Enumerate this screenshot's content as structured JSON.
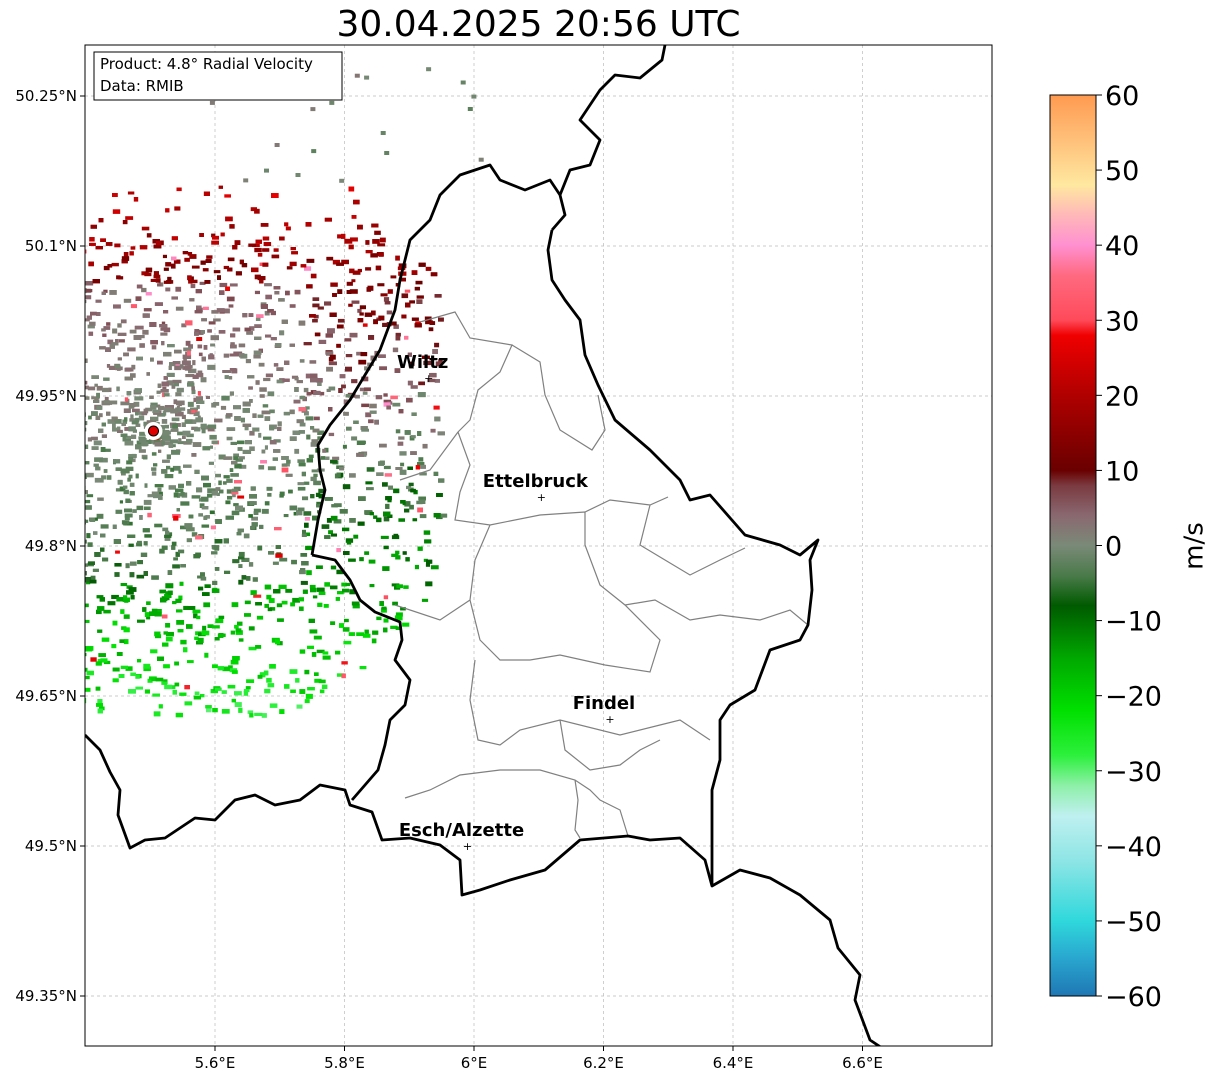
{
  "title": "30.04.2025 20:56 UTC",
  "info_box": {
    "product": "Product: 4.8° Radial Velocity",
    "data": "Data: RMIB"
  },
  "map": {
    "lon_range": [
      5.4,
      6.8
    ],
    "lat_range": [
      49.3,
      50.3
    ],
    "gridlines": true,
    "lon_ticks": [
      {
        "value": 5.6,
        "label": "5.6°E"
      },
      {
        "value": 5.8,
        "label": "5.8°E"
      },
      {
        "value": 6.0,
        "label": "6°E"
      },
      {
        "value": 6.2,
        "label": "6.2°E"
      },
      {
        "value": 6.4,
        "label": "6.4°E"
      },
      {
        "value": 6.6,
        "label": "6.6°E"
      }
    ],
    "lat_ticks": [
      {
        "value": 50.25,
        "label": "50.25°N"
      },
      {
        "value": 50.1,
        "label": "50.1°N"
      },
      {
        "value": 49.95,
        "label": "49.95°N"
      },
      {
        "value": 49.8,
        "label": "49.8°N"
      },
      {
        "value": 49.65,
        "label": "49.65°N"
      },
      {
        "value": 49.5,
        "label": "49.5°N"
      },
      {
        "value": 49.35,
        "label": "49.35°N"
      }
    ],
    "radar_site": {
      "lon": 5.505,
      "lat": 49.915
    },
    "cities": [
      {
        "name": "Wiltz",
        "lon": 5.93,
        "lat": 49.968
      },
      {
        "name": "Ettelbruck",
        "lon": 6.104,
        "lat": 49.849
      },
      {
        "name": "Findel",
        "lon": 6.21,
        "lat": 49.627
      },
      {
        "name": "Esch/Alzette",
        "lon": 5.99,
        "lat": 49.5
      }
    ],
    "border_color": "#000000",
    "canton_color": "#808080"
  },
  "colorbar": {
    "label": "m/s",
    "min": -60,
    "max": 60,
    "ticks": [
      {
        "value": 60,
        "label": "60"
      },
      {
        "value": 50,
        "label": "50"
      },
      {
        "value": 40,
        "label": "40"
      },
      {
        "value": 30,
        "label": "30"
      },
      {
        "value": 20,
        "label": "20"
      },
      {
        "value": 10,
        "label": "10"
      },
      {
        "value": 0,
        "label": "0"
      },
      {
        "value": -10,
        "label": "−10"
      },
      {
        "value": -20,
        "label": "−20"
      },
      {
        "value": -30,
        "label": "−30"
      },
      {
        "value": -40,
        "label": "−40"
      },
      {
        "value": -50,
        "label": "−50"
      },
      {
        "value": -60,
        "label": "−60"
      }
    ],
    "stops": [
      {
        "value": -60,
        "color": "#1f77b4"
      },
      {
        "value": -55,
        "color": "#29a6cf"
      },
      {
        "value": -50,
        "color": "#2fd8dc"
      },
      {
        "value": -42,
        "color": "#8ee5e5"
      },
      {
        "value": -36,
        "color": "#bff0f0"
      },
      {
        "value": -32,
        "color": "#8ef0a8"
      },
      {
        "value": -28,
        "color": "#2df03d"
      },
      {
        "value": -22,
        "color": "#00e000"
      },
      {
        "value": -15,
        "color": "#00a800"
      },
      {
        "value": -8,
        "color": "#005a00"
      },
      {
        "value": -4,
        "color": "#4a7a4a"
      },
      {
        "value": 0,
        "color": "#7a8a78"
      },
      {
        "value": 4,
        "color": "#8a6870"
      },
      {
        "value": 8,
        "color": "#7a3a40"
      },
      {
        "value": 10,
        "color": "#6a0000"
      },
      {
        "value": 20,
        "color": "#b00000"
      },
      {
        "value": 28,
        "color": "#f00000"
      },
      {
        "value": 30,
        "color": "#ff4a5a"
      },
      {
        "value": 36,
        "color": "#ff6a80"
      },
      {
        "value": 40,
        "color": "#ff90d0"
      },
      {
        "value": 44,
        "color": "#ffb8b8"
      },
      {
        "value": 48,
        "color": "#ffe8a0"
      },
      {
        "value": 54,
        "color": "#ffc07a"
      },
      {
        "value": 60,
        "color": "#ff9a50"
      }
    ]
  }
}
